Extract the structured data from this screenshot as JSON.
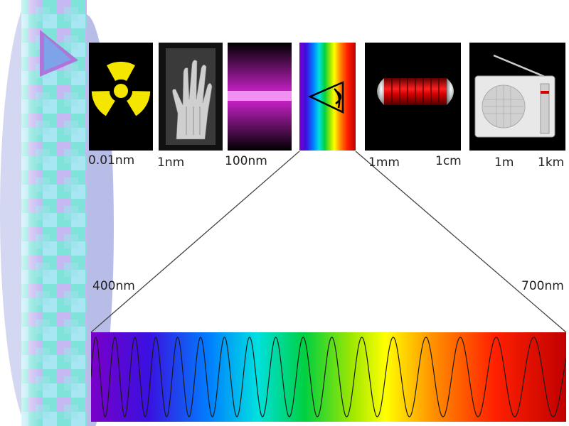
{
  "spectrum_labels": {
    "gamma": "0.01nm",
    "xray": "1nm",
    "uv": "100nm",
    "microwave_start": "1mm",
    "microwave_end": "1cm",
    "radio_start": "1m",
    "radio_end": "1km"
  },
  "visible_range": {
    "start": "400nm",
    "end": "700nm"
  },
  "icons": {
    "gamma": "radiation-icon",
    "xray": "xray-hand-icon",
    "uv": "uv-lamp-icon",
    "visible": "eye-icon",
    "microwave": "microwave-tube-icon",
    "radio": "radio-icon"
  },
  "colors": {
    "accent_triangle": "#b06ad8",
    "radiation_yellow": "#f5e600",
    "uv_magenta": "#d51fd5",
    "microwave_red": "#d40000"
  }
}
